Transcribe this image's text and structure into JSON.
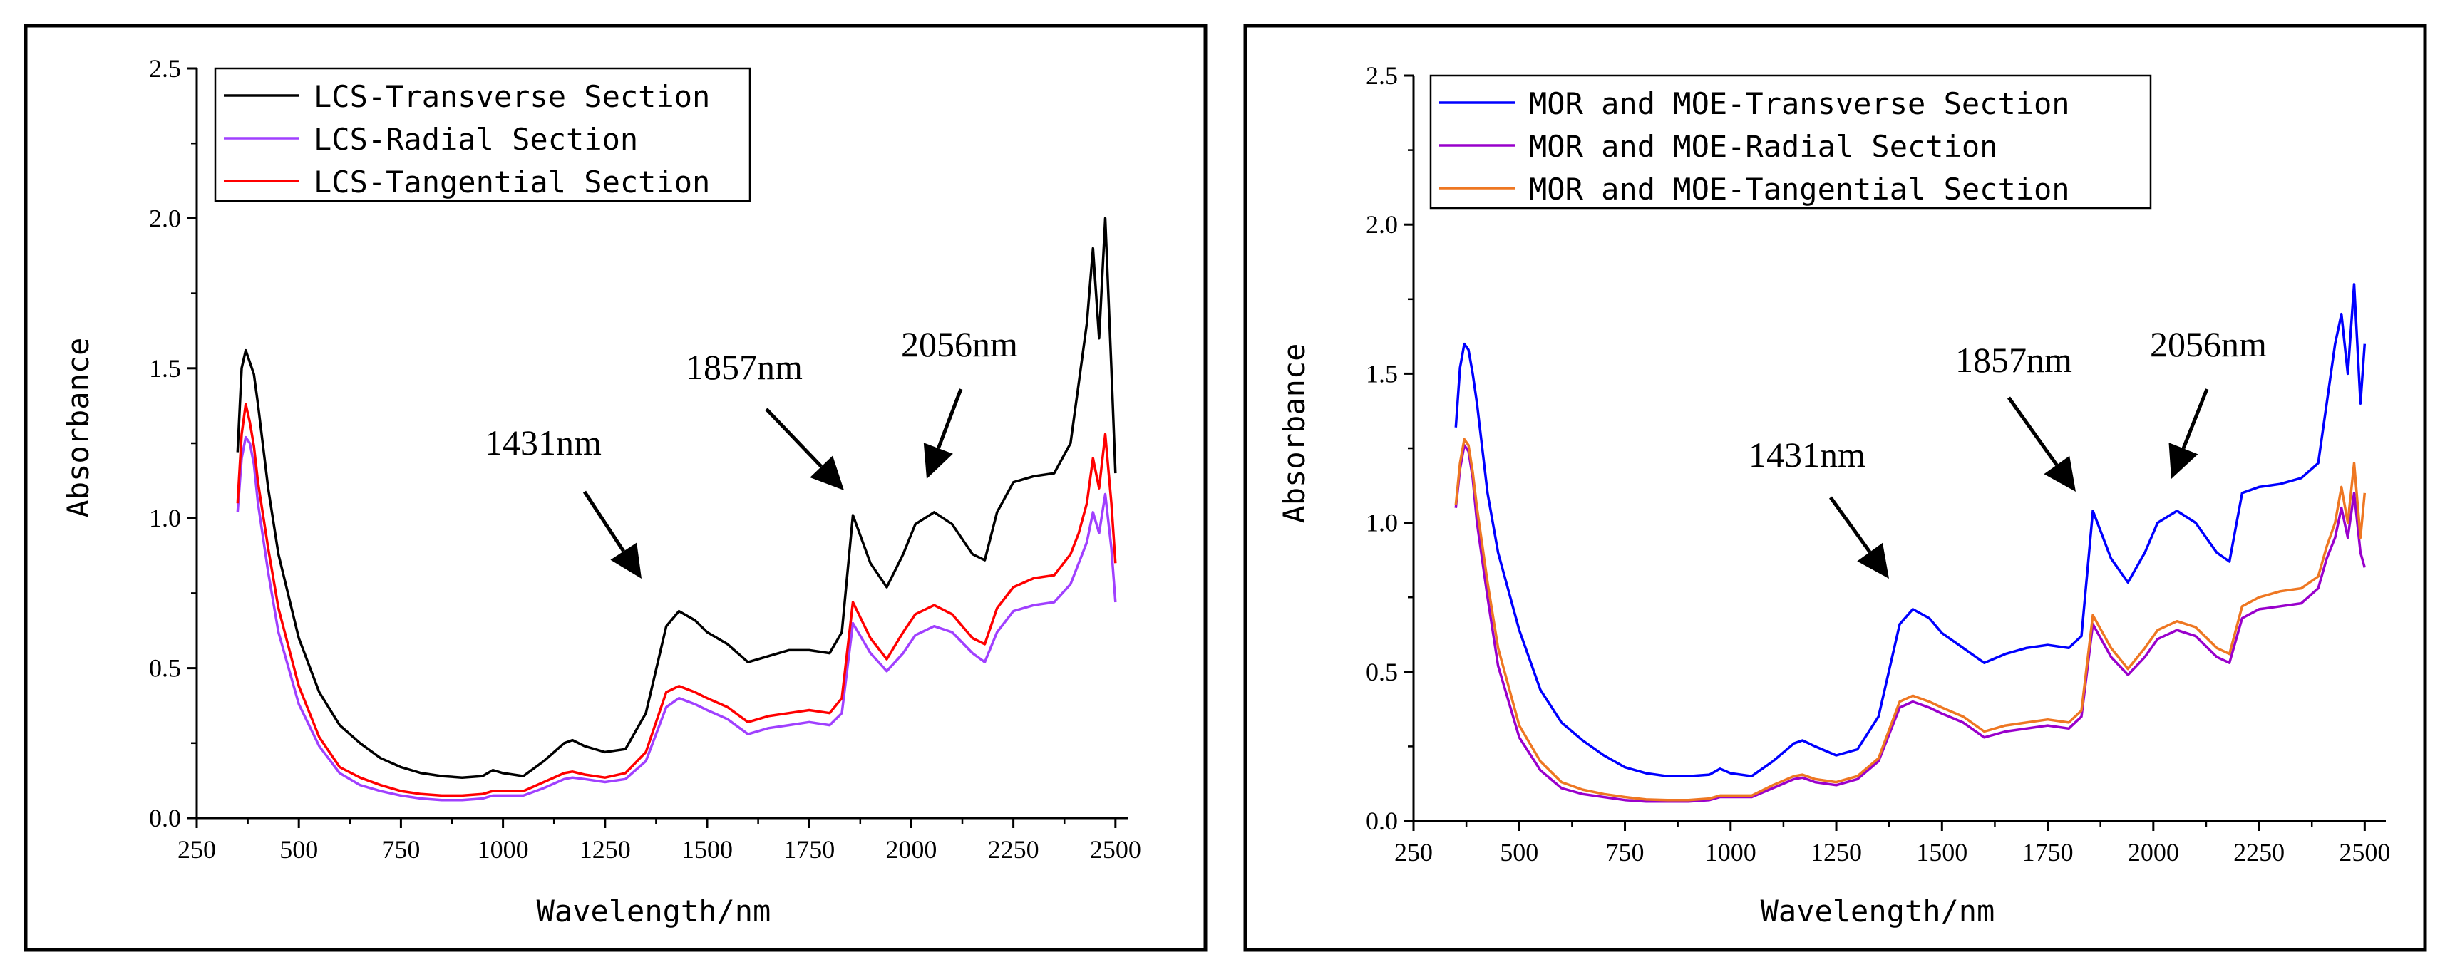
{
  "chart_data": [
    {
      "type": "line",
      "xlabel": "Wavelength/nm",
      "ylabel": "Absorbance",
      "xlim": [
        250,
        2530
      ],
      "ylim": [
        0,
        2.5
      ],
      "xticks": [
        250,
        500,
        750,
        1000,
        1250,
        1500,
        1750,
        2000,
        2250,
        2500
      ],
      "yticks": [
        0.0,
        0.5,
        1.0,
        1.5,
        2.0,
        2.5
      ],
      "ytick_labels": [
        "0.0",
        "0.5",
        "1.0",
        "1.5",
        "2.0",
        "2.5"
      ],
      "legend_position": "top-left",
      "series": [
        {
          "name": "LCS-Transverse Section",
          "color": "#000000",
          "x": [
            350,
            360,
            370,
            380,
            390,
            400,
            425,
            450,
            500,
            550,
            600,
            650,
            700,
            750,
            800,
            850,
            900,
            950,
            975,
            1000,
            1050,
            1100,
            1150,
            1170,
            1200,
            1250,
            1300,
            1350,
            1400,
            1431,
            1470,
            1500,
            1550,
            1600,
            1650,
            1700,
            1750,
            1800,
            1830,
            1857,
            1900,
            1940,
            1980,
            2010,
            2056,
            2100,
            2150,
            2180,
            2210,
            2250,
            2300,
            2350,
            2390,
            2410,
            2430,
            2445,
            2460,
            2475,
            2490,
            2500
          ],
          "y": [
            1.22,
            1.5,
            1.56,
            1.52,
            1.48,
            1.38,
            1.1,
            0.88,
            0.6,
            0.42,
            0.31,
            0.25,
            0.2,
            0.17,
            0.15,
            0.14,
            0.135,
            0.14,
            0.16,
            0.15,
            0.14,
            0.19,
            0.25,
            0.26,
            0.24,
            0.22,
            0.23,
            0.35,
            0.64,
            0.69,
            0.66,
            0.62,
            0.58,
            0.52,
            0.54,
            0.56,
            0.56,
            0.55,
            0.62,
            1.01,
            0.85,
            0.77,
            0.88,
            0.98,
            1.02,
            0.98,
            0.88,
            0.86,
            1.02,
            1.12,
            1.14,
            1.15,
            1.25,
            1.45,
            1.65,
            1.9,
            1.6,
            2.0,
            1.5,
            1.15
          ]
        },
        {
          "name": "LCS-Radial Section",
          "color": "#a040ff",
          "x": [
            350,
            360,
            370,
            380,
            390,
            400,
            425,
            450,
            500,
            550,
            600,
            650,
            700,
            750,
            800,
            850,
            900,
            950,
            975,
            1000,
            1050,
            1100,
            1150,
            1170,
            1200,
            1250,
            1300,
            1350,
            1400,
            1431,
            1470,
            1500,
            1550,
            1600,
            1650,
            1700,
            1750,
            1800,
            1830,
            1857,
            1900,
            1940,
            1980,
            2010,
            2056,
            2100,
            2150,
            2180,
            2210,
            2250,
            2300,
            2350,
            2390,
            2410,
            2430,
            2445,
            2460,
            2475,
            2490,
            2500
          ],
          "y": [
            1.02,
            1.2,
            1.27,
            1.25,
            1.18,
            1.05,
            0.82,
            0.62,
            0.38,
            0.24,
            0.15,
            0.11,
            0.09,
            0.075,
            0.065,
            0.06,
            0.06,
            0.065,
            0.075,
            0.075,
            0.075,
            0.1,
            0.13,
            0.135,
            0.13,
            0.12,
            0.13,
            0.19,
            0.37,
            0.4,
            0.38,
            0.36,
            0.33,
            0.28,
            0.3,
            0.31,
            0.32,
            0.31,
            0.35,
            0.65,
            0.55,
            0.49,
            0.55,
            0.61,
            0.64,
            0.62,
            0.55,
            0.52,
            0.62,
            0.69,
            0.71,
            0.72,
            0.78,
            0.85,
            0.92,
            1.02,
            0.95,
            1.08,
            0.9,
            0.72
          ]
        },
        {
          "name": "LCS-Tangential Section",
          "color": "#ff0000",
          "x": [
            350,
            360,
            370,
            380,
            390,
            400,
            425,
            450,
            500,
            550,
            600,
            650,
            700,
            750,
            800,
            850,
            900,
            950,
            975,
            1000,
            1050,
            1100,
            1150,
            1170,
            1200,
            1250,
            1300,
            1350,
            1400,
            1431,
            1470,
            1500,
            1550,
            1600,
            1650,
            1700,
            1750,
            1800,
            1830,
            1857,
            1900,
            1940,
            1980,
            2010,
            2056,
            2100,
            2150,
            2180,
            2210,
            2250,
            2300,
            2350,
            2390,
            2410,
            2430,
            2445,
            2460,
            2475,
            2490,
            2500
          ],
          "y": [
            1.05,
            1.28,
            1.38,
            1.32,
            1.24,
            1.12,
            0.9,
            0.7,
            0.44,
            0.27,
            0.17,
            0.135,
            0.11,
            0.09,
            0.08,
            0.075,
            0.075,
            0.08,
            0.09,
            0.09,
            0.09,
            0.12,
            0.15,
            0.155,
            0.145,
            0.135,
            0.15,
            0.22,
            0.42,
            0.44,
            0.42,
            0.4,
            0.37,
            0.32,
            0.34,
            0.35,
            0.36,
            0.35,
            0.4,
            0.72,
            0.6,
            0.53,
            0.62,
            0.68,
            0.71,
            0.68,
            0.6,
            0.58,
            0.7,
            0.77,
            0.8,
            0.81,
            0.88,
            0.95,
            1.05,
            1.2,
            1.1,
            1.28,
            1.05,
            0.85
          ]
        }
      ],
      "annotations": [
        {
          "text": "1431nm",
          "x": 1431
        },
        {
          "text": "1857nm",
          "x": 1857
        },
        {
          "text": "2056nm",
          "x": 2056
        }
      ]
    },
    {
      "type": "line",
      "xlabel": "Wavelength/nm",
      "ylabel": "Absorbance",
      "xlim": [
        250,
        2550
      ],
      "ylim": [
        0,
        2.5
      ],
      "xticks": [
        250,
        500,
        750,
        1000,
        1250,
        1500,
        1750,
        2000,
        2250,
        2500
      ],
      "yticks": [
        0.0,
        0.5,
        1.0,
        1.5,
        2.0,
        2.5
      ],
      "ytick_labels": [
        "0.0",
        "0.5",
        "1.0",
        "1.5",
        "2.0",
        "2.5"
      ],
      "legend_position": "top-left",
      "series": [
        {
          "name": "MOR and MOE-Transverse Section",
          "color": "#0000ff",
          "x": [
            350,
            360,
            370,
            380,
            390,
            400,
            425,
            450,
            500,
            550,
            600,
            650,
            700,
            750,
            800,
            850,
            900,
            950,
            975,
            1000,
            1050,
            1100,
            1150,
            1170,
            1200,
            1250,
            1300,
            1350,
            1400,
            1431,
            1470,
            1500,
            1550,
            1600,
            1650,
            1700,
            1750,
            1800,
            1830,
            1857,
            1900,
            1940,
            1980,
            2010,
            2056,
            2100,
            2150,
            2180,
            2210,
            2250,
            2300,
            2350,
            2390,
            2410,
            2430,
            2445,
            2460,
            2475,
            2490,
            2500
          ],
          "y": [
            1.32,
            1.52,
            1.6,
            1.58,
            1.5,
            1.4,
            1.1,
            0.9,
            0.64,
            0.44,
            0.33,
            0.27,
            0.22,
            0.18,
            0.16,
            0.15,
            0.15,
            0.155,
            0.175,
            0.16,
            0.15,
            0.2,
            0.26,
            0.27,
            0.25,
            0.22,
            0.24,
            0.35,
            0.66,
            0.71,
            0.68,
            0.63,
            0.58,
            0.53,
            0.56,
            0.58,
            0.59,
            0.58,
            0.62,
            1.04,
            0.88,
            0.8,
            0.9,
            1.0,
            1.04,
            1.0,
            0.9,
            0.87,
            1.1,
            1.12,
            1.13,
            1.15,
            1.2,
            1.4,
            1.6,
            1.7,
            1.5,
            1.8,
            1.4,
            1.6
          ]
        },
        {
          "name": "MOR and MOE-Radial Section",
          "color": "#9900cc",
          "x": [
            350,
            360,
            370,
            380,
            390,
            400,
            425,
            450,
            500,
            550,
            600,
            650,
            700,
            750,
            800,
            850,
            900,
            950,
            975,
            1000,
            1050,
            1100,
            1150,
            1170,
            1200,
            1250,
            1300,
            1350,
            1400,
            1431,
            1470,
            1500,
            1550,
            1600,
            1650,
            1700,
            1750,
            1800,
            1830,
            1857,
            1900,
            1940,
            1980,
            2010,
            2056,
            2100,
            2150,
            2180,
            2210,
            2250,
            2300,
            2350,
            2390,
            2410,
            2430,
            2445,
            2460,
            2475,
            2490,
            2500
          ],
          "y": [
            1.05,
            1.18,
            1.26,
            1.24,
            1.15,
            1.0,
            0.75,
            0.52,
            0.28,
            0.17,
            0.11,
            0.09,
            0.08,
            0.07,
            0.065,
            0.065,
            0.065,
            0.07,
            0.08,
            0.08,
            0.08,
            0.11,
            0.14,
            0.145,
            0.13,
            0.12,
            0.14,
            0.2,
            0.38,
            0.4,
            0.38,
            0.36,
            0.33,
            0.28,
            0.3,
            0.31,
            0.32,
            0.31,
            0.35,
            0.66,
            0.55,
            0.49,
            0.55,
            0.61,
            0.64,
            0.62,
            0.55,
            0.53,
            0.68,
            0.71,
            0.72,
            0.73,
            0.78,
            0.88,
            0.95,
            1.05,
            0.95,
            1.1,
            0.9,
            0.85
          ]
        },
        {
          "name": "MOR and MOE-Tangential Section",
          "color": "#ee7722",
          "x": [
            350,
            360,
            370,
            380,
            390,
            400,
            425,
            450,
            500,
            550,
            600,
            650,
            700,
            750,
            800,
            850,
            900,
            950,
            975,
            1000,
            1050,
            1100,
            1150,
            1170,
            1200,
            1250,
            1300,
            1350,
            1400,
            1431,
            1470,
            1500,
            1550,
            1600,
            1650,
            1700,
            1750,
            1800,
            1830,
            1857,
            1900,
            1940,
            1980,
            2010,
            2056,
            2100,
            2150,
            2180,
            2210,
            2250,
            2300,
            2350,
            2390,
            2410,
            2430,
            2445,
            2460,
            2475,
            2490,
            2500
          ],
          "y": [
            1.06,
            1.2,
            1.28,
            1.26,
            1.17,
            1.05,
            0.8,
            0.58,
            0.32,
            0.2,
            0.13,
            0.105,
            0.09,
            0.08,
            0.072,
            0.07,
            0.07,
            0.075,
            0.085,
            0.085,
            0.085,
            0.12,
            0.15,
            0.155,
            0.14,
            0.13,
            0.15,
            0.21,
            0.4,
            0.42,
            0.4,
            0.38,
            0.35,
            0.3,
            0.32,
            0.33,
            0.34,
            0.33,
            0.37,
            0.69,
            0.58,
            0.51,
            0.58,
            0.64,
            0.67,
            0.65,
            0.58,
            0.56,
            0.72,
            0.75,
            0.77,
            0.78,
            0.82,
            0.92,
            1.0,
            1.12,
            1.0,
            1.2,
            0.95,
            1.1
          ]
        }
      ],
      "annotations": [
        {
          "text": "1431nm",
          "x": 1431
        },
        {
          "text": "1857nm",
          "x": 1857
        },
        {
          "text": "2056nm",
          "x": 2056
        }
      ]
    }
  ]
}
